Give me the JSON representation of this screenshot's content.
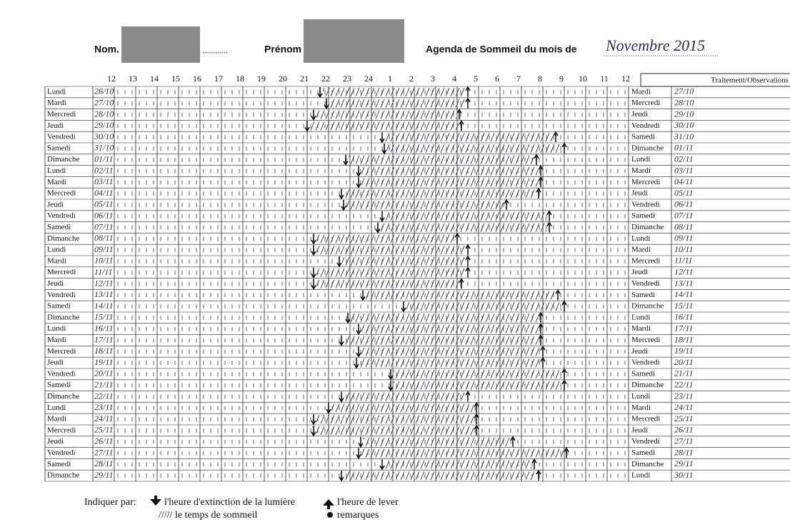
{
  "header": {
    "nom_label": "Nom.",
    "dots": ".............",
    "prenom_label": "Prénom",
    "title": "Agenda de Sommeil du mois de",
    "month": "Novembre 2015"
  },
  "grid": {
    "hours": [
      12,
      13,
      14,
      15,
      16,
      17,
      18,
      19,
      20,
      21,
      22,
      23,
      24,
      {
        "value": 25,
        "label": "1"
      },
      {
        "value": 26,
        "label": "2"
      },
      {
        "value": 27,
        "label": "3"
      },
      {
        "value": 28,
        "label": "4"
      },
      {
        "value": 29,
        "label": "5"
      },
      {
        "value": 30,
        "label": "6"
      },
      {
        "value": 31,
        "label": "7"
      },
      {
        "value": 32,
        "label": "8"
      },
      {
        "value": 33,
        "label": "9"
      },
      {
        "value": 34,
        "label": "10"
      },
      {
        "value": 35,
        "label": "11"
      },
      {
        "value": 36,
        "label": "12"
      }
    ],
    "observations_header": "Traitement/Observations"
  },
  "rows": [
    {
      "day": "Lundi",
      "date": "26/10",
      "next_day": "Mardi",
      "next_date": "27/10",
      "light_off": 21.6,
      "wake": 28.5
    },
    {
      "day": "Mardi",
      "date": "27/10",
      "next_day": "Mercredi",
      "next_date": "28/10",
      "light_off": 21.9,
      "wake": 28.5
    },
    {
      "day": "Mercredi",
      "date": "28/10",
      "next_day": "Jeudi",
      "next_date": "29/10",
      "light_off": 21.3,
      "wake": 28.1
    },
    {
      "day": "Jeudi",
      "date": "29/10",
      "next_day": "Vendredi",
      "next_date": "30/10",
      "light_off": 21.0,
      "wake": 28.2
    },
    {
      "day": "Vendredi",
      "date": "30/10",
      "next_day": "Samedi",
      "next_date": "31/10",
      "light_off": 24.5,
      "wake": 32.6
    },
    {
      "day": "Samedi",
      "date": "31/10",
      "next_day": "Dimanche",
      "next_date": "01/11",
      "light_off": 24.6,
      "wake": 33.0
    },
    {
      "day": "Dimanche",
      "date": "01/11",
      "next_day": "Lundi",
      "next_date": "02/11",
      "light_off": 22.8,
      "wake": 31.7
    },
    {
      "day": "Lundi",
      "date": "02/11",
      "next_day": "Mardi",
      "next_date": "03/11",
      "light_off": 23.4,
      "wake": 31.9
    },
    {
      "day": "Mardi",
      "date": "03/11",
      "next_day": "Mercredi",
      "next_date": "04/11",
      "light_off": 23.4,
      "wake": 31.9
    },
    {
      "day": "Mercredi",
      "date": "04/11",
      "next_day": "Jeudi",
      "next_date": "05/11",
      "light_off": 22.6,
      "wake": 31.8
    },
    {
      "day": "Jeudi",
      "date": "05/11",
      "next_day": "Vendredi",
      "next_date": "06/11",
      "light_off": 22.7,
      "wake": 30.3
    },
    {
      "day": "Vendredi",
      "date": "06/11",
      "next_day": "Samedi",
      "next_date": "07/11",
      "light_off": 24.5,
      "wake": 32.3
    },
    {
      "day": "Samedi",
      "date": "07/11",
      "next_day": "Dimanche",
      "next_date": "08/11",
      "light_off": 24.3,
      "wake": 32.3
    },
    {
      "day": "Dimanche",
      "date": "08/11",
      "next_day": "Lundi",
      "next_date": "09/11",
      "light_off": 21.3,
      "wake": 28.0
    },
    {
      "day": "Lundi",
      "date": "09/11",
      "next_day": "Mardi",
      "next_date": "10/11",
      "light_off": 21.3,
      "wake": 28.5
    },
    {
      "day": "Mardi",
      "date": "10/11",
      "next_day": "Mercredi",
      "next_date": "11/11",
      "light_off": 22.5,
      "wake": 28.5
    },
    {
      "day": "Mercredi",
      "date": "11/11",
      "next_day": "Jeudi",
      "next_date": "12/11",
      "light_off": 21.3,
      "wake": 28.5
    },
    {
      "day": "Jeudi",
      "date": "12/11",
      "next_day": "Vendredi",
      "next_date": "13/11",
      "light_off": 21.3,
      "wake": 28.2
    },
    {
      "day": "Vendredi",
      "date": "13/11",
      "next_day": "Samedi",
      "next_date": "14/11",
      "light_off": 23.6,
      "wake": 32.7
    },
    {
      "day": "Samedi",
      "date": "14/11",
      "next_day": "Dimanche",
      "next_date": "15/11",
      "light_off": 25.5,
      "wake": 33.0
    },
    {
      "day": "Dimanche",
      "date": "15/11",
      "next_day": "Lundi",
      "next_date": "16/11",
      "light_off": 22.9,
      "wake": 31.9
    },
    {
      "day": "Lundi",
      "date": "16/11",
      "next_day": "Mardi",
      "next_date": "17/11",
      "light_off": 23.4,
      "wake": 31.9
    },
    {
      "day": "Mardi",
      "date": "17/11",
      "next_day": "Mercredi",
      "next_date": "18/11",
      "light_off": 22.6,
      "wake": 31.9
    },
    {
      "day": "Mercredi",
      "date": "18/11",
      "next_day": "Jeudi",
      "next_date": "19/11",
      "light_off": 23.4,
      "wake": 32.0
    },
    {
      "day": "Jeudi",
      "date": "19/11",
      "next_day": "Vendredi",
      "next_date": "20/11",
      "light_off": 23.3,
      "wake": 32.0
    },
    {
      "day": "Vendredi",
      "date": "20/11",
      "next_day": "Samedi",
      "next_date": "21/11",
      "light_off": 24.9,
      "wake": 33.0
    },
    {
      "day": "Samedi",
      "date": "21/11",
      "next_day": "Dimanche",
      "next_date": "22/11",
      "light_off": 24.9,
      "wake": 33.0
    },
    {
      "day": "Dimanche",
      "date": "22/11",
      "next_day": "Lundi",
      "next_date": "23/11",
      "light_off": 22.6,
      "wake": 28.5
    },
    {
      "day": "Lundi",
      "date": "23/11",
      "next_day": "Mardi",
      "next_date": "24/11",
      "light_off": 22.0,
      "wake": 28.9
    },
    {
      "day": "Mardi",
      "date": "24/11",
      "next_day": "Mercredi",
      "next_date": "25/11",
      "light_off": 21.3,
      "wake": 28.9
    },
    {
      "day": "Mercredi",
      "date": "25/11",
      "next_day": "Jeudi",
      "next_date": "26/11",
      "light_off": 21.3,
      "wake": 28.9
    },
    {
      "day": "Jeudi",
      "date": "26/11",
      "next_day": "Vendredi",
      "next_date": "27/11",
      "light_off": 23.5,
      "wake": 30.6
    },
    {
      "day": "Vendredi",
      "date": "27/11",
      "next_day": "Samedi",
      "next_date": "28/11",
      "light_off": 23.4,
      "wake": 33.1
    },
    {
      "day": "Samedi",
      "date": "28/11",
      "next_day": "Dimanche",
      "next_date": "29/11",
      "light_off": 24.5,
      "wake": 31.6
    },
    {
      "day": "Dimanche",
      "date": "29/11",
      "next_day": "Lundi",
      "next_date": "30/11",
      "light_off": 22.6,
      "wake": 31.8
    }
  ],
  "legend": {
    "intro": "Indiquer par:",
    "light_off": "l'heure d'extinction de la lumière",
    "wake": "l'heure de lever",
    "sleep": "///// le temps de sommeil",
    "remarks": "remarques"
  }
}
